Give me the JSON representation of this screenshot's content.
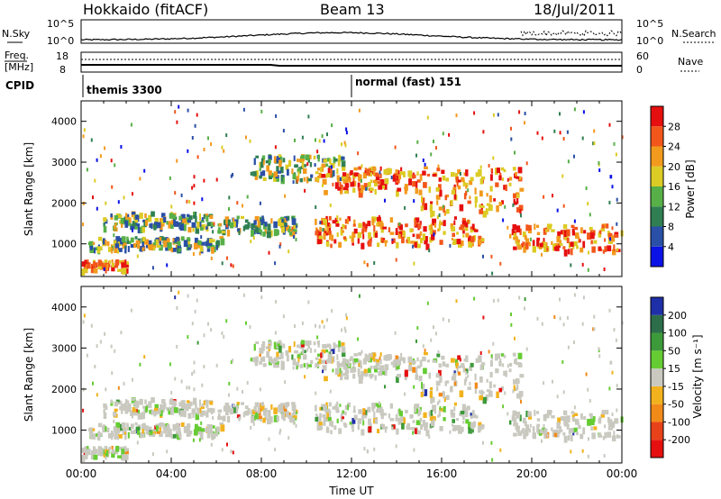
{
  "header": {
    "station": "Hokkaido (fitACF)",
    "beam": "Beam 13",
    "date": "18/Jul/2011"
  },
  "strips": {
    "nsky": {
      "label": "N.Sky",
      "right_label": "N.Search",
      "ticks_left": [
        "10^5",
        "10^0"
      ],
      "ticks_right": [
        "10^5",
        "10^0"
      ]
    },
    "freq": {
      "label_line1": "Freq.",
      "label_line2": "[MHz]",
      "right_label": "Nave",
      "ticks_left": [
        "18",
        "8"
      ],
      "ticks_right": [
        "60",
        "0"
      ]
    },
    "cpid": {
      "label": "CPID",
      "programs": [
        {
          "name": "themis 3300",
          "start_hour": 0
        },
        {
          "name": "normal (fast) 151",
          "start_hour": 12
        }
      ]
    }
  },
  "chart_data": [
    {
      "type": "heatmap",
      "panel": "power",
      "ylabel": "Slant Range [km]",
      "y_ticks": [
        "1000",
        "2000",
        "3000",
        "4000"
      ],
      "ylim": [
        200,
        4500
      ],
      "xlim_hours": [
        0,
        24
      ],
      "colorbar": {
        "label": "Power [dB]",
        "ticks": [
          "4",
          "8",
          "12",
          "16",
          "20",
          "24",
          "28"
        ],
        "colors": [
          "#0b12e6",
          "#2a4fa6",
          "#2f7f52",
          "#57b047",
          "#dccb24",
          "#f29a1d",
          "#f2561a",
          "#e60f0f"
        ]
      },
      "bands": [
        {
          "t": [
            0.3,
            6.2
          ],
          "r": [
            900,
            1200
          ],
          "level": "mid"
        },
        {
          "t": [
            0.9,
            5.8
          ],
          "r": [
            1400,
            1800
          ],
          "level": "mid"
        },
        {
          "t": [
            0,
            2.0
          ],
          "r": [
            380,
            620
          ],
          "level": "high"
        },
        {
          "t": [
            6.0,
            9.5
          ],
          "r": [
            1300,
            1700
          ],
          "level": "mid"
        },
        {
          "t": [
            7.5,
            11.8
          ],
          "r": [
            2600,
            3200
          ],
          "level": "mid"
        },
        {
          "t": [
            10.3,
            17.8
          ],
          "r": [
            1000,
            1700
          ],
          "level": "high"
        },
        {
          "t": [
            10.5,
            15.0
          ],
          "r": [
            2300,
            2900
          ],
          "level": "high"
        },
        {
          "t": [
            15.0,
            19.5
          ],
          "r": [
            1800,
            2900
          ],
          "level": "high"
        },
        {
          "t": [
            19.0,
            24.0
          ],
          "r": [
            850,
            1500
          ],
          "level": "high"
        }
      ]
    },
    {
      "type": "heatmap",
      "panel": "velocity",
      "ylabel": "Slant Range [km]",
      "y_ticks": [
        "1000",
        "2000",
        "3000",
        "4000"
      ],
      "ylim": [
        200,
        4500
      ],
      "xlim_hours": [
        0,
        24
      ],
      "x_ticks": [
        "00:00",
        "04:00",
        "08:00",
        "12:00",
        "16:00",
        "20:00",
        "00:00"
      ],
      "xlabel": "Time UT",
      "colorbar": {
        "label": "Velocity [m s⁻¹]",
        "ticks": [
          "200",
          "100",
          "50",
          "15",
          "-15",
          "-50",
          "-100",
          "-200"
        ],
        "colors": [
          "#1f2fa8",
          "#2c6e4a",
          "#3c9a3a",
          "#66cc33",
          "#c9c9c0",
          "#f2b21d",
          "#f28a1a",
          "#e8421a",
          "#e60f0f"
        ]
      },
      "note": "mostly ground scatter (grey) with scattered green positive and orange negative velocities"
    }
  ]
}
